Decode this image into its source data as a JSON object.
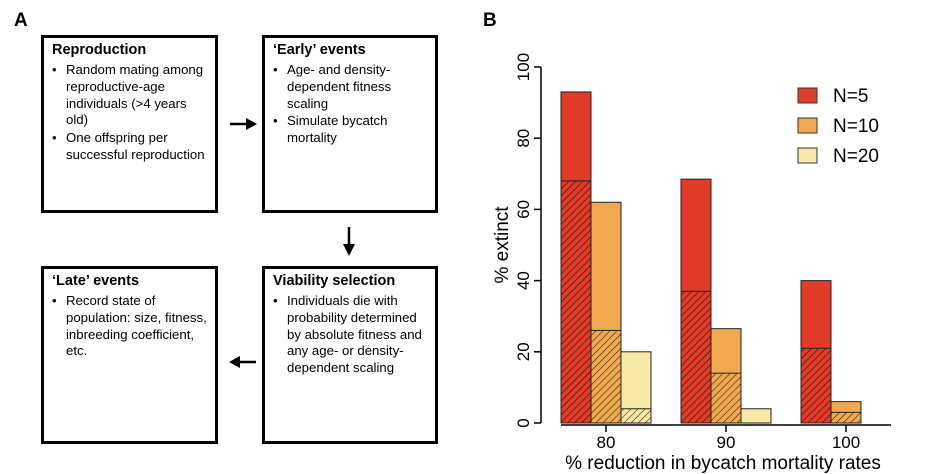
{
  "panel_a": {
    "label": "A",
    "boxes": {
      "reproduction": {
        "title": "Reproduction",
        "items": [
          "Random mating among reproductive-age individuals (>4 years old)",
          "One offspring per successful reproduction"
        ]
      },
      "early": {
        "title": "‘Early’ events",
        "items": [
          "Age- and density-dependent fitness scaling",
          "Simulate bycatch mortality"
        ]
      },
      "viability": {
        "title": "Viability selection",
        "items": [
          "Individuals die with probability determined by absolute fitness and any age- or density-dependent scaling"
        ]
      },
      "late": {
        "title": "‘Late’ events",
        "items": [
          "Record state of population: size, fitness, inbreeding coefficient, etc."
        ]
      }
    }
  },
  "panel_b": {
    "label": "B"
  },
  "chart_data": {
    "type": "bar",
    "title": "",
    "xlabel": "% reduction in bycatch mortality rates",
    "ylabel": "% extinct",
    "categories": [
      "80",
      "90",
      "100"
    ],
    "ylim": [
      0,
      100
    ],
    "yticks": [
      0,
      20,
      40,
      60,
      80,
      100
    ],
    "legend_position": "top-right",
    "grid": false,
    "series": [
      {
        "name": "N=5",
        "color": "#e03c28",
        "values": [
          93,
          68.5,
          40
        ],
        "hatched_values": [
          68,
          37,
          21
        ]
      },
      {
        "name": "N=10",
        "color": "#f0a94e",
        "values": [
          62,
          26.5,
          6
        ],
        "hatched_values": [
          26,
          14,
          3
        ]
      },
      {
        "name": "N=20",
        "color": "#f8e9a6",
        "values": [
          20,
          4,
          0
        ],
        "hatched_values": [
          4,
          0,
          0
        ]
      }
    ]
  }
}
